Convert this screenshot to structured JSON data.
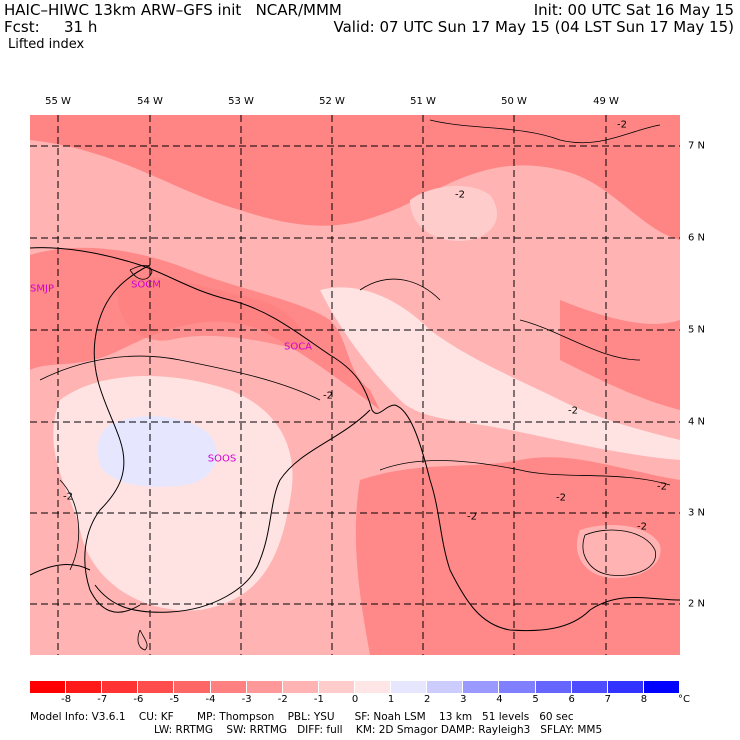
{
  "header": {
    "model_line": "HAIC–HIWC 13km ARW–GFS init   NCAR/MMM",
    "fcst_label": "Fcst:",
    "fcst_value": "31 h",
    "variable": "Lifted index",
    "init": "Init: 00 UTC Sat 16 May 15",
    "valid": "Valid: 07 UTC Sun 17 May 15 (04 LST Sun 17 May 15)"
  },
  "axes": {
    "longitudes": [
      "55 W",
      "54 W",
      "53 W",
      "52 W",
      "51 W",
      "50 W",
      "49 W"
    ],
    "latitudes": [
      "7 N",
      "6 N",
      "5 N",
      "4 N",
      "3 N",
      "2 N"
    ]
  },
  "stations": [
    "SMJP",
    "SOCM",
    "SOCA",
    "SOOS"
  ],
  "contour_labels": [
    "-2",
    "-2",
    "-2",
    "-2",
    "-2",
    "-2",
    "-2",
    "-2",
    "-2"
  ],
  "colorbar": {
    "ticks": [
      "-8",
      "-7",
      "-6",
      "-5",
      "-4",
      "-3",
      "-2",
      "-1",
      "0",
      "1",
      "2",
      "3",
      "4",
      "5",
      "6",
      "7",
      "8"
    ],
    "unit": "°C",
    "colors": [
      "#ff0000",
      "#ff1a1a",
      "#ff3333",
      "#ff4d4d",
      "#ff6666",
      "#ff8080",
      "#ff9999",
      "#ffb3b3",
      "#ffcccc",
      "#ffe6e6",
      "#e6e6ff",
      "#ccccff",
      "#9999ff",
      "#8080ff",
      "#6666ff",
      "#4d4dff",
      "#3333ff",
      "#0000ff"
    ]
  },
  "footer": {
    "line1": "Model Info: V3.6.1    CU: KF       MP: Thompson    PBL: YSU      SF: Noah LSM    13 km   51 levels   60 sec",
    "line2": "LW: RRTMG    SW: RRTMG   DIFF: full    KM: 2D Smagor DAMP: Rayleigh3   SFLAY: MM5"
  }
}
